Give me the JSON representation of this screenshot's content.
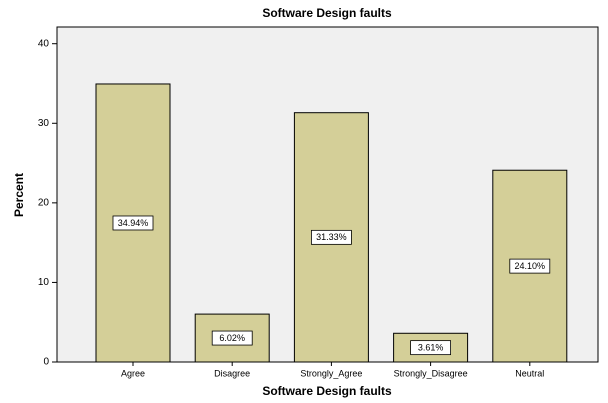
{
  "chart_data": {
    "type": "bar",
    "title": "Software Design faults",
    "x_label": "Software Design faults",
    "y_label": "Percent",
    "categories": [
      "Agree",
      "Disagree",
      "Strongly_Agree",
      "Strongly_Disagree",
      "Neutral"
    ],
    "values": [
      34.94,
      6.02,
      31.33,
      3.61,
      24.1
    ],
    "value_labels": [
      "34.94%",
      "6.02%",
      "31.33%",
      "3.61%",
      "24.10%"
    ],
    "color": "#d4cf98",
    "ylim": [
      0,
      42.1
    ],
    "yticks": [
      0,
      10,
      20,
      30,
      40
    ],
    "grid": false
  }
}
